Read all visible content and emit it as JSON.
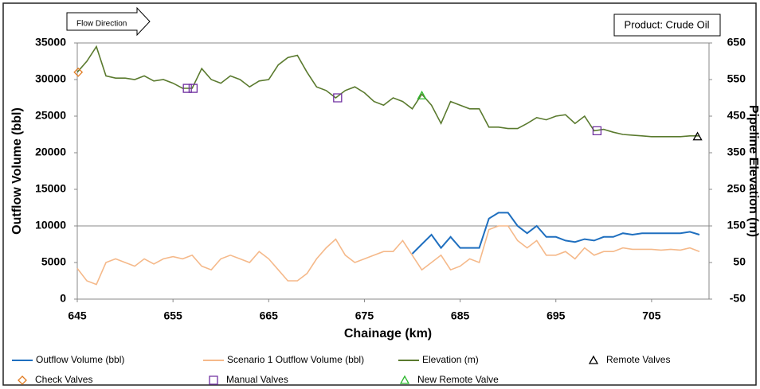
{
  "chart_data": {
    "type": "line",
    "xlabel": "Chainage (km)",
    "ylabel": "Outflow Volume (bbl)",
    "y2label": "Pipeline Elevation (m)",
    "annotations": [
      "Flow Direction",
      "Product: Crude Oil"
    ],
    "xlim": [
      645,
      711
    ],
    "xticks": [
      645,
      655,
      665,
      675,
      685,
      695,
      705
    ],
    "ylim": [
      0,
      35000
    ],
    "yticks": [
      0,
      5000,
      10000,
      15000,
      20000,
      25000,
      30000,
      35000
    ],
    "y2lim": [
      -50,
      650
    ],
    "y2ticks": [
      -50,
      50,
      150,
      250,
      350,
      450,
      550,
      650
    ],
    "hline": 10000,
    "x": [
      645,
      646,
      647,
      648,
      649,
      650,
      651,
      652,
      653,
      654,
      655,
      656,
      657,
      658,
      659,
      660,
      661,
      662,
      663,
      664,
      665,
      666,
      667,
      668,
      669,
      670,
      671,
      672,
      673,
      674,
      675,
      676,
      677,
      678,
      679,
      680,
      681,
      682,
      683,
      684,
      685,
      686,
      687,
      688,
      689,
      690,
      691,
      692,
      693,
      694,
      695,
      696,
      697,
      698,
      699,
      700,
      701,
      702,
      703,
      704,
      705,
      706,
      707,
      708,
      709,
      710
    ],
    "series": [
      {
        "name": "Outflow Volume (bbl)",
        "color": "#1f6fbf",
        "values": [
          null,
          null,
          null,
          null,
          null,
          null,
          null,
          null,
          null,
          null,
          null,
          null,
          null,
          null,
          null,
          null,
          null,
          null,
          null,
          null,
          null,
          null,
          null,
          null,
          null,
          null,
          null,
          null,
          null,
          null,
          null,
          null,
          null,
          null,
          null,
          6200,
          7500,
          8800,
          7000,
          8500,
          7000,
          7000,
          7000,
          11000,
          11800,
          11800,
          10000,
          9000,
          10000,
          8500,
          8500,
          8000,
          7800,
          8200,
          8000,
          8500,
          8500,
          9000,
          8800,
          9000,
          9000,
          9000,
          9000,
          9000,
          9200,
          8800
        ]
      },
      {
        "name": "Scenario 1 Outflow Volume (bbl)",
        "color": "#f5b98a",
        "values": [
          4200,
          2500,
          2000,
          5000,
          5500,
          5000,
          4500,
          5500,
          4800,
          5500,
          5800,
          5500,
          6000,
          4500,
          4000,
          5500,
          6000,
          5500,
          5000,
          6500,
          5500,
          4000,
          2500,
          2500,
          3500,
          5500,
          7000,
          8200,
          6000,
          5000,
          5500,
          6000,
          6500,
          6500,
          8000,
          6000,
          4000,
          5000,
          6000,
          4000,
          4500,
          5500,
          5000,
          9500,
          10000,
          10000,
          8000,
          7000,
          8000,
          6000,
          6000,
          6500,
          5500,
          7000,
          6000,
          6500,
          6500,
          7000,
          6800,
          6800,
          6800,
          6700,
          6800,
          6700,
          7000,
          6500
        ]
      },
      {
        "name": "Elevation (m)",
        "color": "#5a7a2e",
        "axis": "y2",
        "values": [
          570,
          600,
          640,
          560,
          554,
          554,
          550,
          560,
          546,
          550,
          540,
          526,
          526,
          580,
          550,
          540,
          560,
          550,
          530,
          546,
          550,
          590,
          610,
          616,
          570,
          530,
          520,
          500,
          520,
          530,
          514,
          490,
          480,
          500,
          490,
          470,
          510,
          480,
          430,
          490,
          480,
          470,
          470,
          420,
          420,
          416,
          416,
          430,
          446,
          440,
          450,
          454,
          430,
          450,
          410,
          414,
          406,
          400,
          398,
          396,
          394,
          394,
          394,
          394,
          396,
          396
        ]
      }
    ],
    "markers": [
      {
        "name": "Remote Valves",
        "symbol": "triangle",
        "color": "#000000",
        "axis": "y2",
        "x": [
          709.8
        ],
        "values": [
          394
        ]
      },
      {
        "name": "Check Valves",
        "symbol": "diamond",
        "color": "#e07b22",
        "axis": "y2",
        "x": [
          645.1
        ],
        "values": [
          570
        ]
      },
      {
        "name": "Manual Valves",
        "symbol": "square",
        "color": "#7030a0",
        "axis": "y2",
        "x": [
          656.5,
          657.1,
          672.2,
          699.3
        ],
        "values": [
          526,
          526,
          500,
          410
        ]
      },
      {
        "name": "New Remote Valve",
        "symbol": "triangle",
        "color": "#2eb82e",
        "axis": "y2",
        "x": [
          681
        ],
        "values": [
          506
        ]
      }
    ]
  }
}
